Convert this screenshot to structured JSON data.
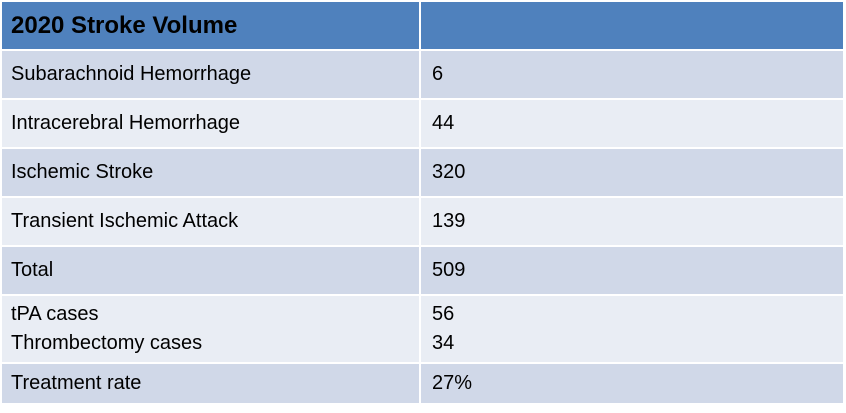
{
  "table": {
    "header": {
      "label": "2020 Stroke Volume",
      "value": ""
    },
    "rows": [
      {
        "label": "Subarachnoid Hemorrhage",
        "value": "6"
      },
      {
        "label": "Intracerebral Hemorrhage",
        "value": "44"
      },
      {
        "label": "Ischemic Stroke",
        "value": "320"
      },
      {
        "label": "Transient Ischemic Attack",
        "value": "139"
      },
      {
        "label": "Total",
        "value": "509"
      },
      {
        "label_a": "tPA cases",
        "label_b": "Thrombectomy cases",
        "value_a": "56",
        "value_b": "34"
      },
      {
        "label": "Treatment rate",
        "value": "27%"
      }
    ]
  },
  "colors": {
    "header": "#4f81bd",
    "row_dark": "#d0d8e8",
    "row_light": "#e9edf4"
  }
}
